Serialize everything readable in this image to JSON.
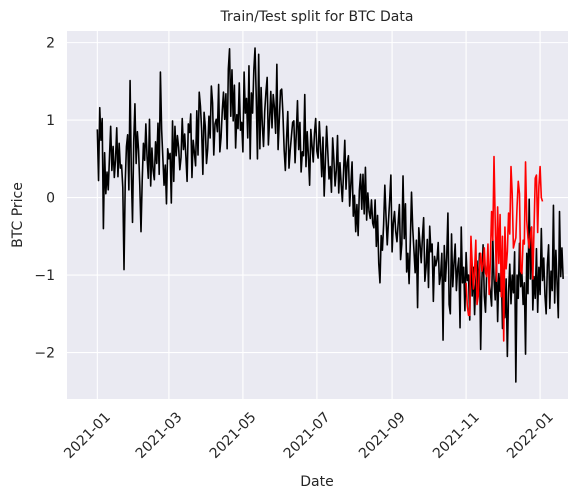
{
  "chart_data": {
    "type": "line",
    "title": "Train/Test split for BTC Data",
    "xlabel": "Date",
    "ylabel": "BTC Price",
    "xlim": [
      "2020-12-07",
      "2022-01-24"
    ],
    "ylim": [
      -2.6,
      2.15
    ],
    "x_ticks": [
      "2021-01",
      "2021-03",
      "2021-05",
      "2021-07",
      "2021-09",
      "2021-11",
      "2022-01"
    ],
    "y_ticks": [
      -2,
      -1,
      0,
      1,
      2
    ],
    "grid": true,
    "background": "#EAEAF2",
    "split_date": "2021-11-01",
    "series": [
      {
        "color": "#000000",
        "x_start": "2021-01-01",
        "step_days": 1,
        "values": [
          0.88,
          0.22,
          1.16,
          0.74,
          1.02,
          -0.4,
          0.58,
          0.05,
          0.33,
          0.1,
          0.52,
          0.92,
          0.35,
          0.66,
          0.26,
          0.49,
          0.9,
          0.27,
          0.7,
          0.38,
          0.42,
          0.13,
          -0.93,
          0.2,
          0.66,
          0.81,
          0.1,
          1.51,
          0.35,
          -0.32,
          0.72,
          1.21,
          0.44,
          0.85,
          0.61,
          0.16,
          -0.44,
          0.22,
          0.7,
          0.48,
          0.95,
          0.52,
          0.25,
          1.01,
          0.15,
          0.64,
          0.35,
          0.23,
          0.72,
          0.44,
          0.96,
          0.3,
          1.62,
          0.88,
          0.52,
          0.16,
          0.42,
          -0.08,
          0.63,
          0.5,
          0.57,
          -0.07,
          0.99,
          0.21,
          0.92,
          0.54,
          0.8,
          0.65,
          0.36,
          0.52,
          1.02,
          0.62,
          0.82,
          0.53,
          0.21,
          0.95,
          0.84,
          1.08,
          0.26,
          0.74,
          0.58,
          0.41,
          1.12,
          0.55,
          1.36,
          1.18,
          0.87,
          0.3,
          1.1,
          0.92,
          0.44,
          0.63,
          1.05,
          0.77,
          1.44,
          1.22,
          0.55,
          0.95,
          1.01,
          0.85,
          1.46,
          0.59,
          0.78,
          1.12,
          1.36,
          1.01,
          1.34,
          0.63,
          1.66,
          1.92,
          1.05,
          1.65,
          0.99,
          1.45,
          0.64,
          1.07,
          0.89,
          1.48,
          0.87,
          0.97,
          0.59,
          1.62,
          1.09,
          1.28,
          0.77,
          1.7,
          0.5,
          1.35,
          1.09,
          1.64,
          1.93,
          1.3,
          0.5,
          1.85,
          0.63,
          1.42,
          0.94,
          0.66,
          1.12,
          1.36,
          1.55,
          0.68,
          1.0,
          1.37,
          0.9,
          1.33,
          1.16,
          0.83,
          1.72,
          0.62,
          1.0,
          1.38,
          1.4,
          1.08,
          0.62,
          0.35,
          0.76,
          1.11,
          0.38,
          0.61,
          0.79,
          0.97,
          0.99,
          0.45,
          0.82,
          1.25,
          0.62,
          0.97,
          0.33,
          0.59,
          0.54,
          1.33,
          0.4,
          0.85,
          0.54,
          0.16,
          0.88,
          0.67,
          0.46,
          0.83,
          1.02,
          0.6,
          0.51,
          0.98,
          0.65,
          0.27,
          0.78,
          0.02,
          0.46,
          0.92,
          0.59,
          0.24,
          0.4,
          0.07,
          0.77,
          0.49,
          0.15,
          0.35,
          0.8,
          0.06,
          0.45,
          0.18,
          -0.05,
          0.34,
          0.74,
          0.11,
          0.45,
          0.54,
          -0.11,
          0.17,
          0.46,
          -0.24,
          0.03,
          -0.44,
          -0.09,
          -0.49,
          0.09,
          0.3,
          -0.15,
          0.3,
          -0.21,
          0.39,
          -0.29,
          0.06,
          -0.18,
          -0.27,
          -0.03,
          -0.33,
          -0.39,
          -0.03,
          -0.63,
          -0.23,
          -0.85,
          -1.1,
          -0.49,
          -0.68,
          -0.35,
          0.16,
          -0.25,
          -0.61,
          -0.31,
          -0.03,
          0.29,
          -0.7,
          -0.33,
          -0.18,
          -0.44,
          -0.57,
          -0.33,
          -0.09,
          -0.8,
          -0.6,
          0.28,
          -0.53,
          -0.08,
          -0.96,
          -0.72,
          -1.11,
          -0.58,
          0.07,
          -0.4,
          -0.68,
          -0.97,
          -0.55,
          -1.42,
          -0.39,
          -0.6,
          -0.84,
          -0.51,
          -0.26,
          -1.08,
          -0.9,
          -0.54,
          -1.16,
          -0.37,
          -0.7,
          -0.6,
          -1.34,
          -0.76,
          -0.88,
          -0.8,
          -0.58,
          -1.12,
          -1.0,
          -0.72,
          -1.84,
          -0.62,
          -1.08,
          -0.78,
          -0.2,
          -1.38,
          -1.5,
          -0.47,
          -1.15,
          -0.85,
          -0.6,
          -1.2,
          -0.92,
          -0.78,
          -1.68,
          -0.38,
          -1.1,
          -0.9,
          -1.46,
          -0.71,
          -1.07,
          -1.0,
          -1.58,
          -0.6,
          -1.27,
          -0.9,
          -1.51,
          -1.07,
          -0.82,
          -1.22,
          -0.72,
          -1.96,
          -1.08,
          -0.61,
          -1.27,
          -1.48,
          -0.95,
          -0.78,
          -1.1,
          -1.22,
          -1.4,
          -0.54,
          -1.05,
          -1.32,
          -0.8,
          -1.6,
          -0.98,
          -1.21,
          -0.92,
          -1.69,
          -1.28,
          -1.55,
          -1.05,
          -2.05,
          -1.22,
          -0.86,
          -1.37,
          -1.0,
          -1.23,
          -0.7,
          -2.38,
          -1.0,
          -1.3,
          -0.59,
          -1.15,
          -0.97,
          -1.38,
          -1.1,
          -2.02,
          -0.72,
          -1.24,
          -0.02,
          -1.05,
          -0.38,
          -1.45,
          -1.02,
          -1.3,
          -0.66,
          -1.48,
          -0.9,
          -1.25,
          -0.4,
          -1.07,
          -0.78,
          -1.26,
          -1.5,
          -0.87,
          -0.61,
          -1.43,
          -0.95,
          -1.2,
          -0.1,
          -1.36,
          -0.68,
          -1.1,
          -1.55,
          -0.18,
          -1.02,
          -0.65,
          -1.05
        ]
      },
      {
        "color": "#FF0000",
        "x_start": "2021-11-01",
        "step_days": 1,
        "values": [
          -1.1,
          -1.4,
          -1.52,
          -1.52,
          -0.5,
          -0.85,
          -1.18,
          -0.95,
          -0.55,
          -1.38,
          -1.27,
          -0.88,
          -0.72,
          -0.95,
          -0.87,
          -0.65,
          -0.97,
          -1.02,
          -0.6,
          -1.25,
          -0.8,
          -0.18,
          -0.55,
          0.53,
          -0.33,
          -1.08,
          -0.12,
          -0.85,
          -0.22,
          -1.28,
          -0.5,
          -1.85,
          -0.38,
          -0.92,
          -0.7,
          -0.2,
          -0.47,
          0.4,
          0.05,
          -0.65,
          -0.58,
          -0.52,
          -0.12,
          0.21,
          0.05,
          -0.95,
          -0.98,
          -0.55,
          -0.6,
          0.46,
          -0.3,
          -0.52,
          -0.65,
          -0.48,
          -0.38,
          -1.05,
          -0.4,
          0.25,
          0.29,
          -0.45,
          0.14,
          0.4,
          0.0,
          -0.05
        ]
      }
    ]
  }
}
